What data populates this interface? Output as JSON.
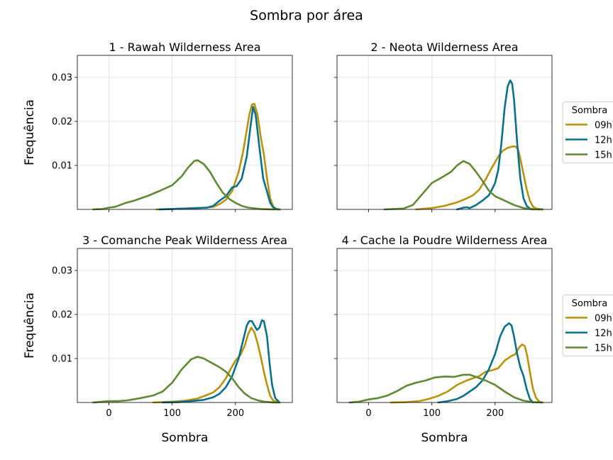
{
  "suptitle": "Sombra por área",
  "legend_title": "Sombra",
  "chart_data": {
    "type": "line",
    "kind": "kde",
    "xlim": [
      -50,
      290
    ],
    "ylim": [
      0,
      0.035
    ],
    "x_ticks": [
      0,
      100,
      200
    ],
    "y_ticks": [
      0.01,
      0.02,
      0.03
    ],
    "y_tick_labels": [
      "0.01",
      "0.02",
      "0.03"
    ],
    "xlabel": "Sombra",
    "ylabel": "Frequência",
    "grid": true,
    "legend_position": "right, outside, beside right column",
    "colors": {
      "09h": "#b8930d",
      "12h": "#08708a",
      "15h": "#5f8a33"
    },
    "series_names": [
      "09h",
      "12h",
      "15h"
    ],
    "panels": [
      {
        "title": "1 - Rawah Wilderness Area",
        "series": [
          {
            "name": "09h",
            "x": [
              75,
              100,
              120,
              140,
              155,
              165,
              175,
              185,
              195,
              205,
              212,
              218,
              222,
              226,
              230,
              235,
              240,
              245,
              250,
              255,
              260,
              265,
              270
            ],
            "values": [
              0,
              0.0001,
              0.0002,
              0.0003,
              0.0004,
              0.0006,
              0.0012,
              0.0022,
              0.0042,
              0.0085,
              0.013,
              0.018,
              0.0215,
              0.0238,
              0.024,
              0.0215,
              0.0165,
              0.0125,
              0.007,
              0.0025,
              0.0006,
              0.0001,
              0
            ]
          },
          {
            "name": "12h",
            "x": [
              80,
              100,
              120,
              140,
              155,
              165,
              175,
              185,
              195,
              202,
              210,
              218,
              224,
              228,
              232,
              238,
              244,
              250,
              255,
              260,
              265,
              270
            ],
            "values": [
              0,
              0.0001,
              0.0002,
              0.0003,
              0.0004,
              0.0008,
              0.002,
              0.003,
              0.005,
              0.0053,
              0.007,
              0.012,
              0.019,
              0.0233,
              0.0215,
              0.014,
              0.007,
              0.004,
              0.0015,
              0.0004,
              0.0001,
              0
            ]
          },
          {
            "name": "15h",
            "x": [
              -25,
              -10,
              0,
              10,
              25,
              40,
              60,
              80,
              100,
              115,
              125,
              135,
              140,
              150,
              160,
              170,
              180,
              190,
              200,
              210,
              220,
              240,
              260,
              270
            ],
            "values": [
              0,
              0.0001,
              0.0004,
              0.0006,
              0.0014,
              0.002,
              0.003,
              0.0042,
              0.0055,
              0.0075,
              0.0095,
              0.011,
              0.0112,
              0.0103,
              0.0085,
              0.006,
              0.0038,
              0.0024,
              0.0015,
              0.0008,
              0.0004,
              0.0001,
              0,
              0
            ]
          }
        ]
      },
      {
        "title": "2 - Neota Wilderness Area",
        "series": [
          {
            "name": "09h",
            "x": [
              75,
              100,
              120,
              140,
              155,
              165,
              175,
              185,
              195,
              205,
              212,
              220,
              228,
              232,
              236,
              240,
              245,
              250,
              255,
              260,
              265,
              275
            ],
            "values": [
              0,
              0.0003,
              0.0008,
              0.0016,
              0.0025,
              0.0032,
              0.0045,
              0.0068,
              0.0095,
              0.012,
              0.0133,
              0.014,
              0.0143,
              0.0143,
              0.0138,
              0.0115,
              0.008,
              0.0045,
              0.002,
              0.0006,
              0.0002,
              0
            ]
          },
          {
            "name": "12h",
            "x": [
              140,
              150,
              155,
              160,
              170,
              180,
              190,
              195,
              200,
              205,
              210,
              215,
              220,
              224,
              227,
              230,
              235,
              240,
              245,
              250,
              255,
              260
            ],
            "values": [
              0,
              0.0004,
              0.0005,
              0.0003,
              0.001,
              0.002,
              0.0032,
              0.0045,
              0.006,
              0.009,
              0.015,
              0.023,
              0.028,
              0.0293,
              0.0285,
              0.025,
              0.015,
              0.007,
              0.0025,
              0.0008,
              0.0002,
              0
            ]
          },
          {
            "name": "15h",
            "x": [
              25,
              40,
              55,
              70,
              85,
              100,
              115,
              130,
              140,
              150,
              160,
              170,
              180,
              190,
              200,
              215,
              230,
              245,
              255,
              265,
              275
            ],
            "values": [
              0,
              0.0001,
              0.0002,
              0.001,
              0.0035,
              0.006,
              0.0072,
              0.0085,
              0.01,
              0.011,
              0.0103,
              0.0085,
              0.0065,
              0.0043,
              0.003,
              0.002,
              0.001,
              0.0003,
              0.0001,
              0,
              0
            ]
          }
        ]
      },
      {
        "title": "3 - Comanche Peak Wilderness Area",
        "series": [
          {
            "name": "09h",
            "x": [
              70,
              100,
              120,
              140,
              155,
              165,
              175,
              185,
              192,
              200,
              208,
              215,
              220,
              225,
              230,
              235,
              240,
              245,
              250,
              255,
              260,
              268
            ],
            "values": [
              0,
              0.0002,
              0.0004,
              0.0009,
              0.0017,
              0.0023,
              0.0035,
              0.0055,
              0.0075,
              0.0095,
              0.0108,
              0.013,
              0.0155,
              0.017,
              0.016,
              0.0135,
              0.0105,
              0.007,
              0.004,
              0.0015,
              0.0004,
              0
            ]
          },
          {
            "name": "12h",
            "x": [
              85,
              110,
              130,
              150,
              165,
              175,
              185,
              195,
              205,
              212,
              218,
              222,
              226,
              230,
              234,
              238,
              242,
              245,
              250,
              254,
              258,
              263,
              270
            ],
            "values": [
              0,
              0.0001,
              0.0003,
              0.0006,
              0.0012,
              0.002,
              0.0035,
              0.006,
              0.01,
              0.014,
              0.0175,
              0.0185,
              0.0185,
              0.0175,
              0.0165,
              0.017,
              0.0187,
              0.0185,
              0.015,
              0.009,
              0.004,
              0.001,
              0
            ]
          },
          {
            "name": "15h",
            "x": [
              -25,
              -10,
              0,
              15,
              30,
              50,
              70,
              85,
              100,
              115,
              130,
              140,
              150,
              160,
              175,
              185,
              195,
              205,
              215,
              225,
              235,
              245,
              260,
              270
            ],
            "values": [
              0,
              0.0002,
              0.0003,
              0.0003,
              0.0005,
              0.001,
              0.0016,
              0.0025,
              0.0045,
              0.0075,
              0.0098,
              0.0104,
              0.01,
              0.0092,
              0.008,
              0.007,
              0.0055,
              0.0035,
              0.002,
              0.001,
              0.0005,
              0.0002,
              0,
              0
            ]
          }
        ]
      },
      {
        "title": "4 - Cache la Poudre Wilderness Area",
        "series": [
          {
            "name": "09h",
            "x": [
              35,
              60,
              80,
              95,
              110,
              125,
              140,
              155,
              165,
              175,
              185,
              195,
              205,
              215,
              225,
              232,
              238,
              243,
              247,
              251,
              255,
              260,
              265,
              270,
              275
            ],
            "values": [
              0,
              0.0001,
              0.0003,
              0.0008,
              0.0015,
              0.0025,
              0.004,
              0.005,
              0.0055,
              0.006,
              0.007,
              0.0073,
              0.0078,
              0.0095,
              0.0105,
              0.011,
              0.0125,
              0.0132,
              0.0128,
              0.0105,
              0.007,
              0.003,
              0.001,
              0.0002,
              0
            ]
          },
          {
            "name": "12h",
            "x": [
              110,
              125,
              140,
              150,
              160,
              170,
              180,
              190,
              200,
              208,
              215,
              222,
              226,
              230,
              235,
              240,
              245,
              250,
              255,
              260
            ],
            "values": [
              0,
              0.0003,
              0.0008,
              0.0015,
              0.0025,
              0.0035,
              0.005,
              0.0075,
              0.011,
              0.015,
              0.0172,
              0.018,
              0.0175,
              0.015,
              0.011,
              0.008,
              0.006,
              0.003,
              0.0008,
              0
            ]
          },
          {
            "name": "15h",
            "x": [
              -30,
              -15,
              0,
              15,
              30,
              45,
              60,
              75,
              90,
              105,
              120,
              135,
              150,
              160,
              170,
              185,
              200,
              215,
              230,
              245,
              260,
              275
            ],
            "values": [
              0,
              0.0002,
              0.0007,
              0.001,
              0.0016,
              0.0026,
              0.0038,
              0.0045,
              0.005,
              0.0057,
              0.0059,
              0.0058,
              0.0063,
              0.0063,
              0.0058,
              0.005,
              0.004,
              0.0025,
              0.0012,
              0.0004,
              0.0001,
              0
            ]
          }
        ]
      }
    ]
  }
}
